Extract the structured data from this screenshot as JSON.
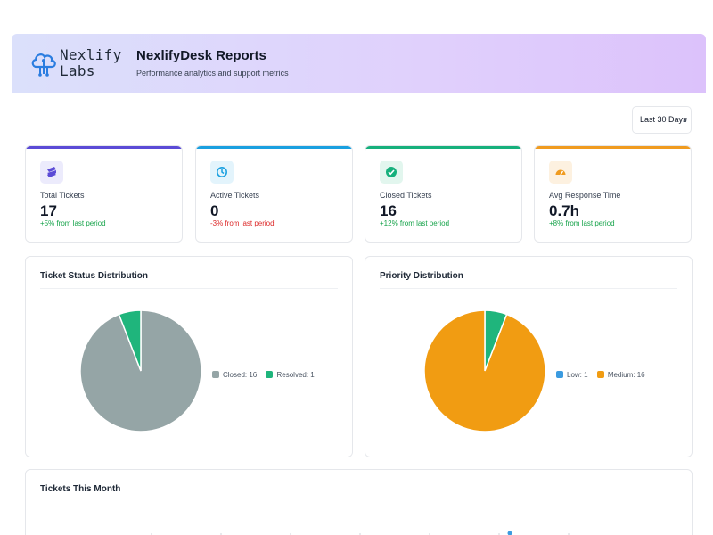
{
  "brand": {
    "logo_text": "Nexlify Labs"
  },
  "header": {
    "title": "NexlifyDesk Reports",
    "subtitle": "Performance analytics and support metrics"
  },
  "filter": {
    "date_range": "Last 30 Days"
  },
  "stats": [
    {
      "label": "Total Tickets",
      "value": "17",
      "delta": "+5% from last period",
      "accent": "#5b4bd6",
      "icon": "ticket-icon"
    },
    {
      "label": "Active Tickets",
      "value": "0",
      "delta": "-3% from last period",
      "accent": "#1aa0e0",
      "icon": "clock-icon"
    },
    {
      "label": "Closed Tickets",
      "value": "16",
      "delta": "+12% from last period",
      "accent": "#16b07c",
      "icon": "check-circle-icon"
    },
    {
      "label": "Avg Response Time",
      "value": "0.7h",
      "delta": "+8% from last period",
      "accent": "#f09b1f",
      "icon": "speedometer-icon"
    }
  ],
  "panels": {
    "status": {
      "title": "Ticket Status Distribution"
    },
    "priority": {
      "title": "Priority Distribution"
    },
    "monthly": {
      "title": "Tickets This Month"
    }
  },
  "chart_data": [
    {
      "type": "pie",
      "title": "Ticket Status Distribution",
      "slices": [
        {
          "label": "Closed",
          "value": 16,
          "color": "#95a5a6"
        },
        {
          "label": "Resolved",
          "value": 1,
          "color": "#1fb57c"
        }
      ],
      "legend_text": [
        "Closed: 16",
        "Resolved: 1"
      ],
      "legend": "right"
    },
    {
      "type": "pie",
      "title": "Priority Distribution",
      "slices": [
        {
          "label": "Low",
          "value": 1,
          "color": "#1fb57c"
        },
        {
          "label": "Medium",
          "value": 16,
          "color": "#f19c12"
        }
      ],
      "legend_colors": [
        "#3b9be0",
        "#f19c12"
      ],
      "legend_text": [
        "Low: 1",
        "Medium: 16"
      ],
      "legend": "right"
    },
    {
      "type": "line",
      "title": "Tickets This Month"
    }
  ]
}
